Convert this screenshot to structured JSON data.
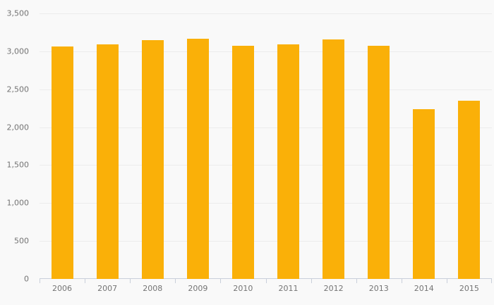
{
  "chart_data": {
    "type": "bar",
    "title": "",
    "xlabel": "",
    "ylabel": "",
    "categories": [
      "2006",
      "2007",
      "2008",
      "2009",
      "2010",
      "2011",
      "2012",
      "2013",
      "2014",
      "2015"
    ],
    "values": [
      3060,
      3095,
      3150,
      3170,
      3070,
      3095,
      3160,
      3075,
      2240,
      2345
    ],
    "ylim": [
      0,
      3500
    ],
    "y_tick_values": [
      0,
      500,
      1000,
      1500,
      2000,
      2500,
      3000,
      3500
    ],
    "y_tick_labels": [
      "0",
      "500",
      "1,000",
      "1,500",
      "2,000",
      "2,500",
      "3,000",
      "3,500"
    ],
    "grid": true,
    "legend": "none",
    "colors": {
      "bar": "#fab008",
      "background": "#f9f9f9",
      "gridline": "#ececec",
      "axis_line": "#c9cfda",
      "label_text": "#747474"
    }
  }
}
